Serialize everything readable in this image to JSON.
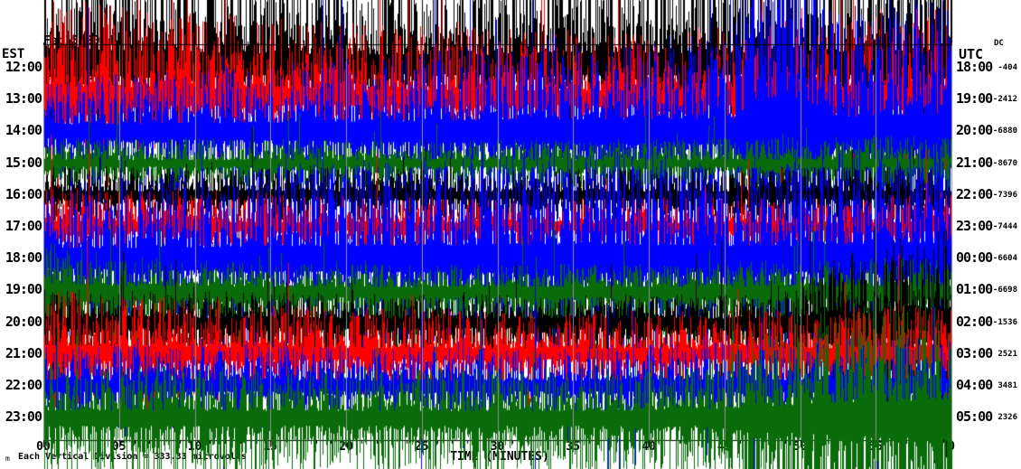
{
  "header": {
    "date": "Feb15,2024",
    "station": "ROC HHZ LD",
    "location": "(LDEO)"
  },
  "axes": {
    "left_label": "EST",
    "right_label": "UTC",
    "dc_label": "DC",
    "x_label": "TIME (MINUTES)",
    "x_ticks": [
      "00",
      "05",
      "10",
      "15",
      "20",
      "25",
      "30",
      "35",
      "40",
      "45",
      "50",
      "55"
    ],
    "x_end_tick": "0",
    "footer": "Each Vertical Division = 333.33 microvolts",
    "watermark": "m"
  },
  "colors": {
    "background": "#ffffff",
    "grid": "#909090",
    "border": "#000000",
    "trace_black": "#000000",
    "trace_red": "#ff0000",
    "trace_blue": "#0000ff",
    "trace_green": "#0a6b0a"
  },
  "chart_data": {
    "type": "line",
    "subtype": "helicorder-seismogram",
    "title": "Feb15,2024 ROC HHZ LD",
    "xlabel": "TIME (MINUTES)",
    "x_axis": {
      "min": 0,
      "max": 60,
      "major_tick_step": 5,
      "minor_tick_step": 1
    },
    "left_time_zone": "EST",
    "right_time_zone": "UTC",
    "vertical_division_microvolts": 333.33,
    "rows": [
      {
        "est": "12:00",
        "utc": "18:00",
        "dc": "-404",
        "color": "#000000",
        "render": {
          "base": 26,
          "up": 2.1,
          "dn": 0.95,
          "sp": 0.06,
          "sm": 2.2,
          "seed": 101,
          "env": [
            [
              0,
              1.6
            ],
            [
              0.22,
              1.15
            ],
            [
              0.5,
              1.0
            ],
            [
              0.62,
              1.25
            ],
            [
              0.8,
              1.1
            ],
            [
              1,
              1.5
            ]
          ]
        }
      },
      {
        "est": "13:00",
        "utc": "19:00",
        "dc": "-2412",
        "color": "#ff0000",
        "render": {
          "base": 23,
          "up": 1.75,
          "dn": 0.95,
          "sp": 0.05,
          "sm": 2.0,
          "seed": 202,
          "env": [
            [
              0,
              1.45
            ],
            [
              0.3,
              1.1
            ],
            [
              0.55,
              1.0
            ],
            [
              0.75,
              1.05
            ],
            [
              1,
              1.35
            ]
          ]
        }
      },
      {
        "est": "14:00",
        "utc": "20:00",
        "dc": "-6880",
        "color": "#0000ff",
        "render": {
          "base": 24,
          "up": 1.45,
          "dn": 1.5,
          "sp": 0.06,
          "sm": 2.2,
          "seed": 303,
          "env": [
            [
              0,
              0.85
            ],
            [
              0.3,
              1.15
            ],
            [
              0.55,
              1.5
            ],
            [
              0.76,
              1.6
            ],
            [
              0.79,
              4.2
            ],
            [
              0.84,
              4.0
            ],
            [
              0.87,
              1.8
            ],
            [
              1,
              2.3
            ]
          ]
        }
      },
      {
        "est": "15:00",
        "utc": "21:00",
        "dc": "-8670",
        "color": "#0a6b0a",
        "render": {
          "base": 13,
          "up": 1.0,
          "dn": 1.05,
          "sp": 0.04,
          "sm": 1.8,
          "seed": 404,
          "env": [
            [
              0,
              1.1
            ],
            [
              0.5,
              1.0
            ],
            [
              1,
              1.25
            ]
          ]
        }
      },
      {
        "est": "16:00",
        "utc": "22:00",
        "dc": "-7396",
        "color": "#000000",
        "render": {
          "base": 15,
          "up": 1.0,
          "dn": 1.0,
          "sp": 0.04,
          "sm": 1.7,
          "seed": 505,
          "env": [
            [
              0,
              1.1
            ],
            [
              0.5,
              1.0
            ],
            [
              1,
              1.1
            ]
          ]
        }
      },
      {
        "est": "17:00",
        "utc": "23:00",
        "dc": "-7444",
        "color": "#ff0000",
        "render": {
          "base": 16,
          "up": 1.05,
          "dn": 1.0,
          "sp": 0.04,
          "sm": 1.8,
          "seed": 606,
          "env": [
            [
              0,
              1.35
            ],
            [
              0.4,
              1.0
            ],
            [
              0.8,
              1.0
            ],
            [
              1,
              1.2
            ]
          ]
        }
      },
      {
        "est": "18:00",
        "utc": "00:00",
        "dc": "-6604",
        "color": "#0000ff",
        "render": {
          "base": 29,
          "up": 1.5,
          "dn": 1.5,
          "sp": 0.05,
          "sm": 2.4,
          "seed": 707,
          "env": [
            [
              0,
              1.0
            ],
            [
              0.35,
              1.3
            ],
            [
              0.6,
              1.45
            ],
            [
              0.8,
              1.25
            ],
            [
              1,
              1.6
            ]
          ]
        }
      },
      {
        "est": "19:00",
        "utc": "01:00",
        "dc": "-6698",
        "color": "#0a6b0a",
        "render": {
          "base": 15,
          "up": 1.0,
          "dn": 2.0,
          "sp": 0.05,
          "sm": 2.2,
          "seed": 808,
          "env": [
            [
              0,
              2.1
            ],
            [
              0.08,
              1.3
            ],
            [
              0.3,
              1.0
            ],
            [
              0.6,
              1.0
            ],
            [
              1,
              1.3
            ]
          ]
        }
      },
      {
        "est": "20:00",
        "utc": "02:00",
        "dc": "-1536",
        "color": "#000000",
        "render": {
          "base": 16,
          "up": 1.0,
          "dn": 1.5,
          "sp": 0.04,
          "sm": 2.0,
          "seed": 909,
          "env": [
            [
              0,
              1.2
            ],
            [
              0.4,
              1.0
            ],
            [
              0.8,
              1.0
            ],
            [
              0.88,
              2.4
            ],
            [
              1,
              3.5
            ]
          ]
        }
      },
      {
        "est": "21:00",
        "utc": "03:00",
        "dc": "2521",
        "color": "#ff0000",
        "render": {
          "base": 21,
          "up": 1.15,
          "dn": 1.0,
          "sp": 0.04,
          "sm": 1.9,
          "seed": 1010,
          "env": [
            [
              0,
              1.55
            ],
            [
              0.25,
              1.15
            ],
            [
              0.6,
              1.0
            ],
            [
              1,
              1.15
            ]
          ]
        }
      },
      {
        "est": "22:00",
        "utc": "04:00",
        "dc": "3481",
        "color": "#0000ff",
        "render": {
          "base": 18,
          "up": 1.15,
          "dn": 1.2,
          "sp": 0.05,
          "sm": 2.2,
          "seed": 1111,
          "env": [
            [
              0,
              1.2
            ],
            [
              0.5,
              1.05
            ],
            [
              1,
              1.4
            ]
          ]
        }
      },
      {
        "est": "23:00",
        "utc": "05:00",
        "dc": "2326",
        "color": "#0a6b0a",
        "render": {
          "base": 23,
          "up": 1.15,
          "dn": 1.4,
          "sp": 0.06,
          "sm": 2.2,
          "seed": 1212,
          "env": [
            [
              0,
              1.15
            ],
            [
              0.55,
              1.1
            ],
            [
              0.72,
              1.25
            ],
            [
              0.85,
              2.3
            ],
            [
              1,
              3.0
            ]
          ]
        }
      }
    ]
  }
}
